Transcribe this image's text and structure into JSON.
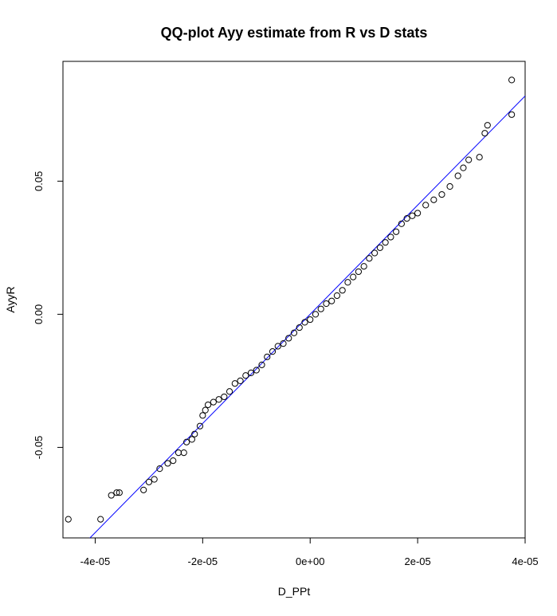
{
  "chart_data": {
    "type": "scatter",
    "title": "QQ-plot Ayy estimate from R vs D stats",
    "xlabel": "D_PPt",
    "ylabel": "AyyR",
    "xlim": [
      -4.6e-05,
      4e-05
    ],
    "ylim": [
      -0.084,
      0.095
    ],
    "x_ticks": [
      {
        "value": -4e-05,
        "label": "-4e-05"
      },
      {
        "value": -2e-05,
        "label": "-2e-05"
      },
      {
        "value": 0,
        "label": "0e+00"
      },
      {
        "value": 2e-05,
        "label": "2e-05"
      },
      {
        "value": 4e-05,
        "label": "4e-05"
      }
    ],
    "y_ticks": [
      {
        "value": -0.05,
        "label": "-0.05"
      },
      {
        "value": 0,
        "label": "0.00"
      },
      {
        "value": 0.05,
        "label": "0.05"
      }
    ],
    "grid": false,
    "points": {
      "x": [
        -4.5e-05,
        -3.9e-05,
        -3.7e-05,
        -3.6e-05,
        -3.55e-05,
        -3.1e-05,
        -3e-05,
        -2.9e-05,
        -2.8e-05,
        -2.65e-05,
        -2.55e-05,
        -2.45e-05,
        -2.35e-05,
        -2.3e-05,
        -2.2e-05,
        -2.15e-05,
        -2.05e-05,
        -2e-05,
        -1.95e-05,
        -1.9e-05,
        -1.8e-05,
        -1.7e-05,
        -1.6e-05,
        -1.5e-05,
        -1.4e-05,
        -1.3e-05,
        -1.2e-05,
        -1.1e-05,
        -1e-05,
        -9e-06,
        -8e-06,
        -7e-06,
        -6e-06,
        -5e-06,
        -4e-06,
        -3e-06,
        -2e-06,
        -1e-06,
        0.0,
        1e-06,
        2e-06,
        3e-06,
        4e-06,
        5e-06,
        6e-06,
        7e-06,
        8e-06,
        9e-06,
        1e-05,
        1.1e-05,
        1.2e-05,
        1.3e-05,
        1.4e-05,
        1.5e-05,
        1.6e-05,
        1.7e-05,
        1.8e-05,
        1.9e-05,
        2e-05,
        2.15e-05,
        2.3e-05,
        2.45e-05,
        2.6e-05,
        2.75e-05,
        2.85e-05,
        2.95e-05,
        3.15e-05,
        3.25e-05,
        3.3e-05,
        3.75e-05,
        3.75e-05
      ],
      "y": [
        -0.077,
        -0.077,
        -0.068,
        -0.067,
        -0.067,
        -0.066,
        -0.063,
        -0.062,
        -0.058,
        -0.056,
        -0.055,
        -0.052,
        -0.052,
        -0.048,
        -0.047,
        -0.045,
        -0.042,
        -0.038,
        -0.036,
        -0.034,
        -0.033,
        -0.032,
        -0.031,
        -0.029,
        -0.026,
        -0.025,
        -0.023,
        -0.022,
        -0.021,
        -0.019,
        -0.016,
        -0.014,
        -0.012,
        -0.011,
        -0.009,
        -0.007,
        -0.005,
        -0.003,
        -0.002,
        0.0,
        0.002,
        0.004,
        0.005,
        0.007,
        0.009,
        0.012,
        0.014,
        0.016,
        0.018,
        0.021,
        0.023,
        0.025,
        0.027,
        0.029,
        0.031,
        0.034,
        0.036,
        0.037,
        0.038,
        0.041,
        0.043,
        0.045,
        0.048,
        0.052,
        0.055,
        0.058,
        0.059,
        0.068,
        0.071,
        0.075,
        0.088
      ]
    },
    "reference_line": {
      "slope": 2050,
      "intercept": 0.0
    },
    "colors": {
      "points": "#000000",
      "reference_line": "#0000ff",
      "frame": "#000000"
    }
  }
}
